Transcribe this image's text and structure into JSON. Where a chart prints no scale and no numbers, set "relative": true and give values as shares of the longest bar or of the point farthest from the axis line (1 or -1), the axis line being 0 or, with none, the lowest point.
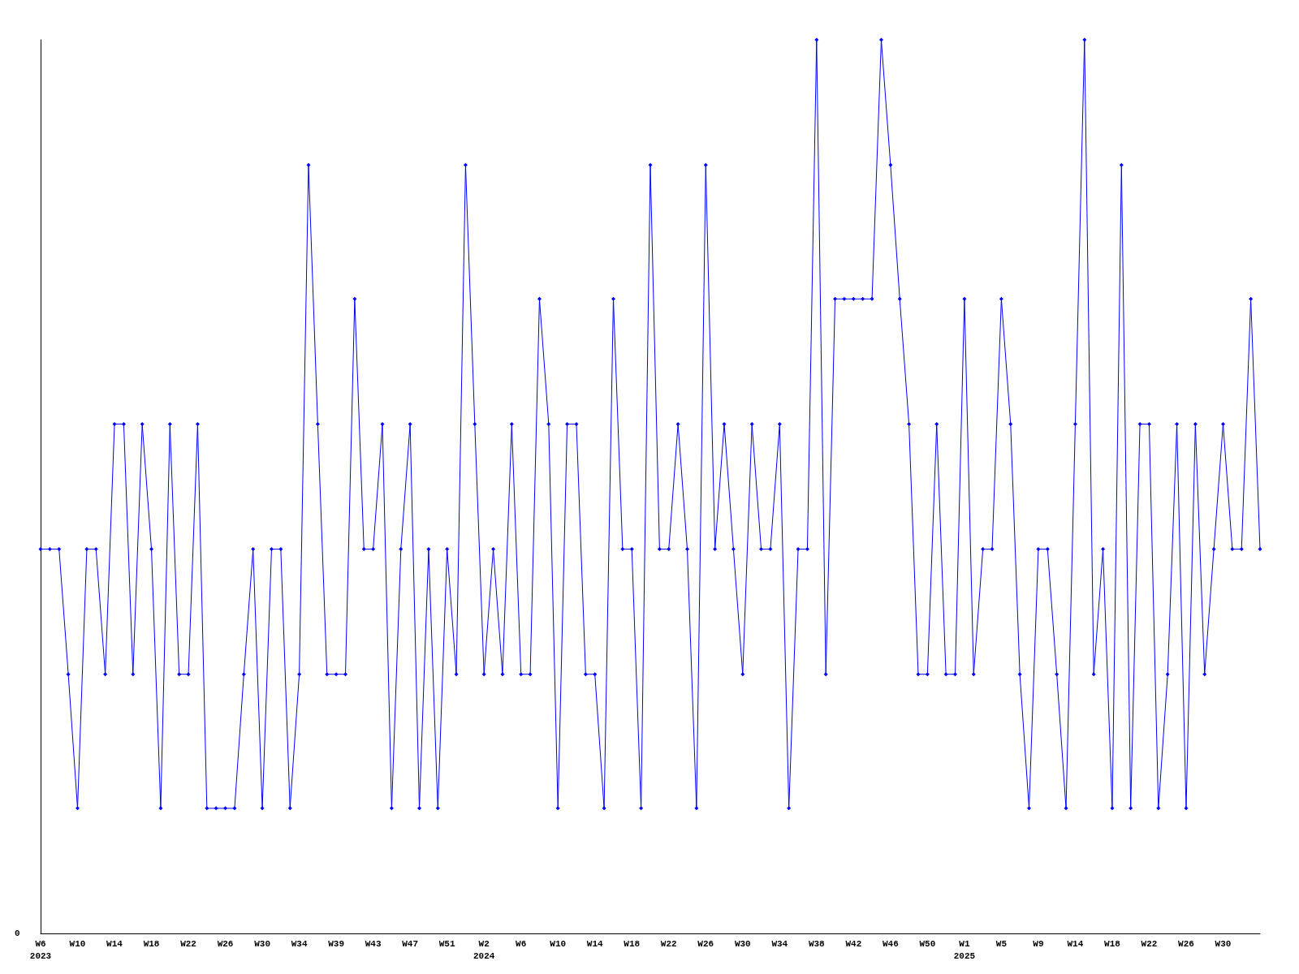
{
  "chart_data": {
    "type": "line",
    "relative": true,
    "marker": "diamond",
    "line_style": "solid",
    "annotations": [
      "0"
    ],
    "categories": [
      "W6\n2023",
      null,
      null,
      null,
      "W10",
      null,
      null,
      null,
      "W14",
      null,
      null,
      null,
      "W18",
      null,
      null,
      null,
      "W22",
      null,
      null,
      null,
      "W26",
      null,
      null,
      null,
      "W30",
      null,
      null,
      null,
      "W34",
      null,
      null,
      null,
      "W39",
      null,
      null,
      null,
      "W43",
      null,
      null,
      null,
      "W47",
      null,
      null,
      null,
      "W51",
      null,
      null,
      null,
      "W2\n2024",
      null,
      null,
      null,
      "W6",
      null,
      null,
      null,
      "W10",
      null,
      null,
      null,
      "W14",
      null,
      null,
      null,
      "W18",
      null,
      null,
      null,
      "W22",
      null,
      null,
      null,
      "W26",
      null,
      null,
      null,
      "W30",
      null,
      null,
      null,
      "W34",
      null,
      null,
      null,
      "W38",
      null,
      null,
      null,
      "W42",
      null,
      null,
      null,
      "W46",
      null,
      null,
      null,
      "W50",
      null,
      null,
      null,
      "W1\n2025",
      null,
      null,
      null,
      "W5",
      null,
      null,
      null,
      "W9",
      null,
      null,
      null,
      "W14",
      null,
      null,
      null,
      "W18",
      null,
      null,
      null,
      "W22",
      null,
      null,
      null,
      "W26",
      null,
      null,
      null,
      "W30",
      null,
      null,
      null,
      null
    ],
    "series": [
      {
        "color": "#0000ff",
        "values": [
          0.43,
          0.43,
          0.43,
          0.29,
          0.14,
          0.43,
          0.43,
          0.29,
          0.57,
          0.57,
          0.29,
          0.57,
          0.43,
          0.14,
          0.57,
          0.29,
          0.29,
          0.57,
          0.14,
          0.14,
          0.14,
          0.14,
          0.29,
          0.43,
          0.14,
          0.43,
          0.43,
          0.14,
          0.29,
          0.86,
          0.57,
          0.29,
          0.29,
          0.29,
          0.71,
          0.43,
          0.43,
          0.57,
          0.14,
          0.43,
          0.57,
          0.14,
          0.43,
          0.14,
          0.43,
          0.29,
          0.86,
          0.57,
          0.29,
          0.43,
          0.29,
          0.57,
          0.29,
          0.29,
          0.71,
          0.57,
          0.14,
          0.57,
          0.57,
          0.29,
          0.29,
          0.14,
          0.71,
          0.43,
          0.43,
          0.14,
          0.86,
          0.43,
          0.43,
          0.57,
          0.43,
          0.14,
          0.86,
          0.43,
          0.57,
          0.43,
          0.29,
          0.57,
          0.43,
          0.43,
          0.57,
          0.14,
          0.43,
          0.43,
          1,
          0.29,
          0.71,
          0.71,
          0.71,
          0.71,
          0.71,
          1,
          0.86,
          0.71,
          0.57,
          0.29,
          0.29,
          0.57,
          0.29,
          0.29,
          0.71,
          0.29,
          0.43,
          0.43,
          0.71,
          0.57,
          0.29,
          0.14,
          0.43,
          0.43,
          0.29,
          0.14,
          0.57,
          1,
          0.29,
          0.43,
          0.14,
          0.86,
          0.14,
          0.57,
          0.57,
          0.14,
          0.29,
          0.57,
          0.14,
          0.57,
          0.29,
          0.43,
          0.57,
          0.43,
          0.43,
          0.71,
          0.43
        ]
      }
    ]
  }
}
